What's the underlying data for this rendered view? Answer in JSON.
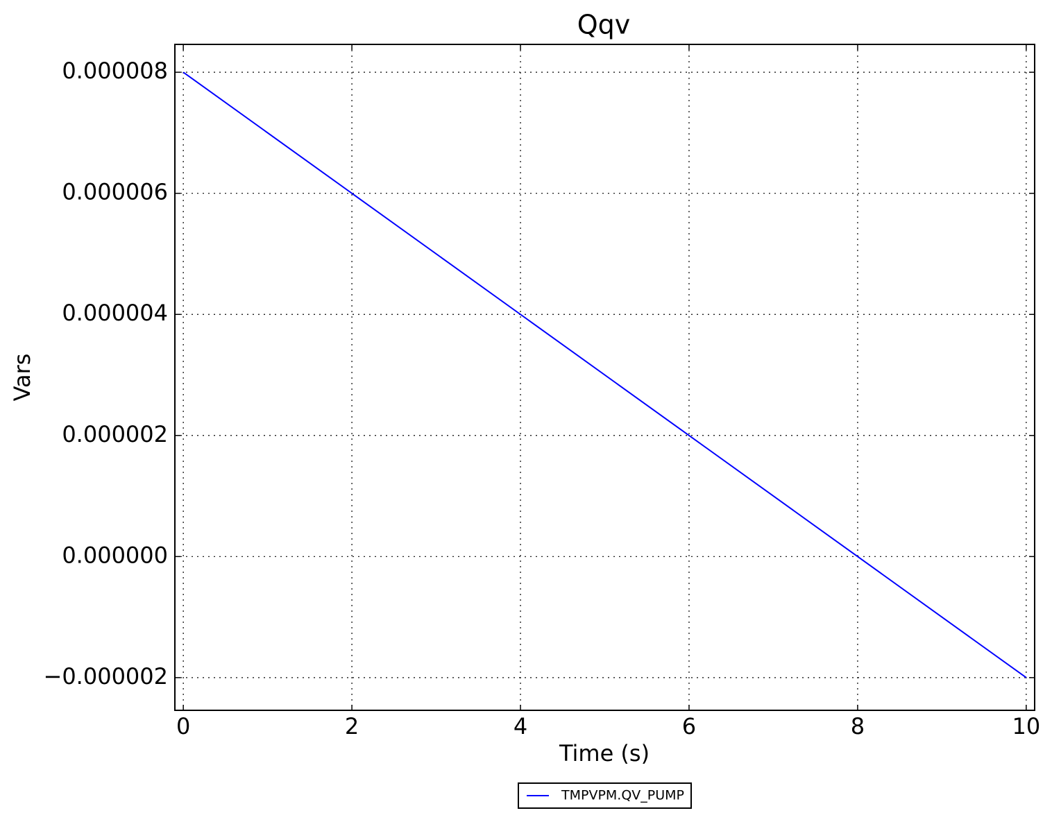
{
  "chart_data": {
    "type": "line",
    "title": "Qqv",
    "x_label": "Time (s)",
    "y_label": "Vars",
    "x": [
      0,
      10
    ],
    "series": [
      {
        "name": "TMPVPM.QV_PUMP",
        "color": "#0000ff",
        "values": [
          8e-06,
          -2e-06
        ]
      }
    ],
    "xlim": [
      -0.1,
      10.1
    ],
    "xticks": [
      0,
      2,
      4,
      6,
      8,
      10
    ],
    "ylim": [
      -2.54e-06,
      8.46e-06
    ],
    "yticks": [
      {
        "value": -2e-06,
        "label": "−0.000002"
      },
      {
        "value": 0,
        "label": "0.000000"
      },
      {
        "value": 2e-06,
        "label": "0.000002"
      },
      {
        "value": 4e-06,
        "label": "0.000004"
      },
      {
        "value": 6e-06,
        "label": "0.000006"
      },
      {
        "value": 8e-06,
        "label": "0.000008"
      }
    ],
    "grid": true,
    "legend": "bottom"
  }
}
